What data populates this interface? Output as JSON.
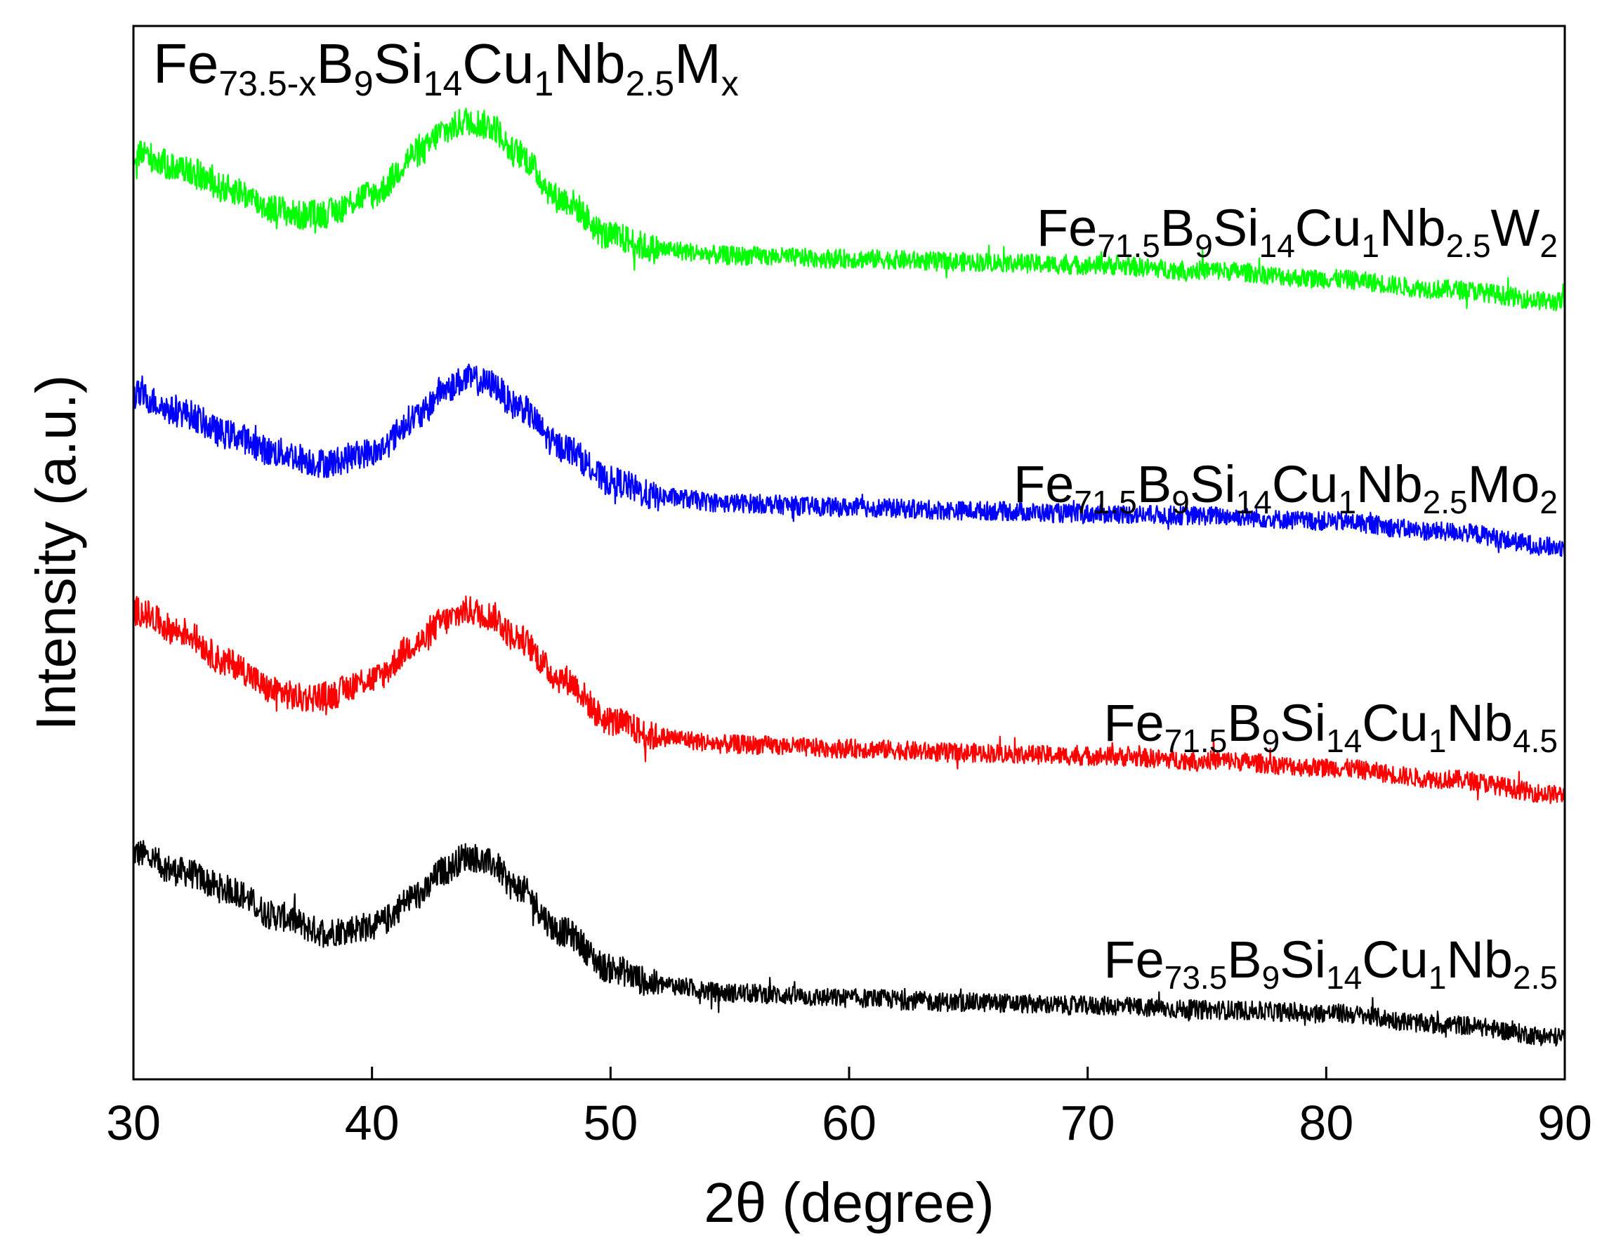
{
  "chart_data": {
    "type": "line",
    "title": {
      "base": [
        {
          "t": "Fe",
          "sub": false
        },
        {
          "t": "73.5-x",
          "sub": true
        },
        {
          "t": "B",
          "sub": false
        },
        {
          "t": "9",
          "sub": true
        },
        {
          "t": "Si",
          "sub": false
        },
        {
          "t": "14",
          "sub": true
        },
        {
          "t": "Cu",
          "sub": false
        },
        {
          "t": "1",
          "sub": true
        },
        {
          "t": "Nb",
          "sub": false
        },
        {
          "t": "2.5",
          "sub": true
        },
        {
          "t": "M",
          "sub": false
        },
        {
          "t": "x",
          "sub": true
        }
      ]
    },
    "xlabel": "2θ (degree)",
    "ylabel": "Intensity (a.u.)",
    "xlim": [
      30,
      90
    ],
    "xticks": [
      "30",
      "40",
      "50",
      "60",
      "70",
      "80",
      "90"
    ],
    "ylim": [
      0,
      1
    ],
    "grid": false,
    "legend": "none",
    "series": [
      {
        "color": "#000000",
        "label": [
          {
            "t": "Fe",
            "sub": false
          },
          {
            "t": "73.5",
            "sub": true
          },
          {
            "t": "B",
            "sub": false
          },
          {
            "t": "9",
            "sub": true
          },
          {
            "t": "Si",
            "sub": false
          },
          {
            "t": "14",
            "sub": true
          },
          {
            "t": "Cu",
            "sub": false
          },
          {
            "t": "1",
            "sub": true
          },
          {
            "t": "Nb",
            "sub": false
          },
          {
            "t": "2.5",
            "sub": true
          }
        ],
        "x": [
          30,
          32,
          34,
          36,
          38,
          40,
          42,
          43,
          44,
          45,
          46,
          48,
          50,
          52,
          55,
          60,
          65,
          70,
          75,
          80,
          85,
          90
        ],
        "y": [
          0.215,
          0.197,
          0.18,
          0.155,
          0.14,
          0.145,
          0.175,
          0.198,
          0.212,
          0.205,
          0.183,
          0.14,
          0.105,
          0.09,
          0.082,
          0.077,
          0.073,
          0.07,
          0.066,
          0.063,
          0.052,
          0.04
        ]
      },
      {
        "color": "#ff0000",
        "label": [
          {
            "t": "Fe",
            "sub": false
          },
          {
            "t": "71.5",
            "sub": true
          },
          {
            "t": "B",
            "sub": false
          },
          {
            "t": "9",
            "sub": true
          },
          {
            "t": "Si",
            "sub": false
          },
          {
            "t": "14",
            "sub": true
          },
          {
            "t": "Cu",
            "sub": false
          },
          {
            "t": "1",
            "sub": true
          },
          {
            "t": "Nb",
            "sub": false
          },
          {
            "t": "4.5",
            "sub": true
          }
        ],
        "x": [
          30,
          32,
          34,
          36,
          37,
          38,
          40,
          42,
          43,
          44,
          45,
          46,
          48,
          50,
          52,
          55,
          60,
          65,
          70,
          75,
          80,
          85,
          90
        ],
        "y": [
          0.445,
          0.425,
          0.395,
          0.368,
          0.362,
          0.364,
          0.38,
          0.415,
          0.435,
          0.445,
          0.44,
          0.42,
          0.38,
          0.34,
          0.325,
          0.318,
          0.314,
          0.31,
          0.307,
          0.303,
          0.296,
          0.285,
          0.27
        ]
      },
      {
        "color": "#0000ff",
        "label": [
          {
            "t": "Fe",
            "sub": false
          },
          {
            "t": "71.5",
            "sub": true
          },
          {
            "t": "B",
            "sub": false
          },
          {
            "t": "9",
            "sub": true
          },
          {
            "t": "Si",
            "sub": false
          },
          {
            "t": "14",
            "sub": true
          },
          {
            "t": "Cu",
            "sub": false
          },
          {
            "t": "1",
            "sub": true
          },
          {
            "t": "Nb",
            "sub": false
          },
          {
            "t": "2.5",
            "sub": true
          },
          {
            "t": "Mo",
            "sub": false
          },
          {
            "t": "2",
            "sub": true
          }
        ],
        "x": [
          30,
          32,
          34,
          36,
          38,
          40,
          42,
          43,
          44,
          45,
          46,
          48,
          50,
          52,
          55,
          60,
          65,
          70,
          75,
          80,
          85,
          90
        ],
        "y": [
          0.65,
          0.633,
          0.612,
          0.595,
          0.585,
          0.595,
          0.63,
          0.655,
          0.665,
          0.66,
          0.64,
          0.6,
          0.568,
          0.553,
          0.547,
          0.543,
          0.54,
          0.537,
          0.535,
          0.53,
          0.52,
          0.505
        ]
      },
      {
        "color": "#00ff00",
        "label": [
          {
            "t": "Fe",
            "sub": false
          },
          {
            "t": "71.5",
            "sub": true
          },
          {
            "t": "B",
            "sub": false
          },
          {
            "t": "9",
            "sub": true
          },
          {
            "t": "Si",
            "sub": false
          },
          {
            "t": "14",
            "sub": true
          },
          {
            "t": "Cu",
            "sub": false
          },
          {
            "t": "1",
            "sub": true
          },
          {
            "t": "Nb",
            "sub": false
          },
          {
            "t": "2.5",
            "sub": true
          },
          {
            "t": "W",
            "sub": false
          },
          {
            "t": "2",
            "sub": true
          }
        ],
        "x": [
          30,
          32,
          34,
          36,
          37,
          38,
          40,
          42,
          43,
          44,
          45,
          46,
          48,
          50,
          52,
          55,
          60,
          65,
          70,
          75,
          80,
          85,
          90
        ],
        "y": [
          0.88,
          0.865,
          0.845,
          0.826,
          0.82,
          0.822,
          0.84,
          0.88,
          0.9,
          0.91,
          0.905,
          0.88,
          0.835,
          0.8,
          0.788,
          0.782,
          0.779,
          0.776,
          0.773,
          0.768,
          0.76,
          0.75,
          0.738
        ]
      }
    ]
  }
}
